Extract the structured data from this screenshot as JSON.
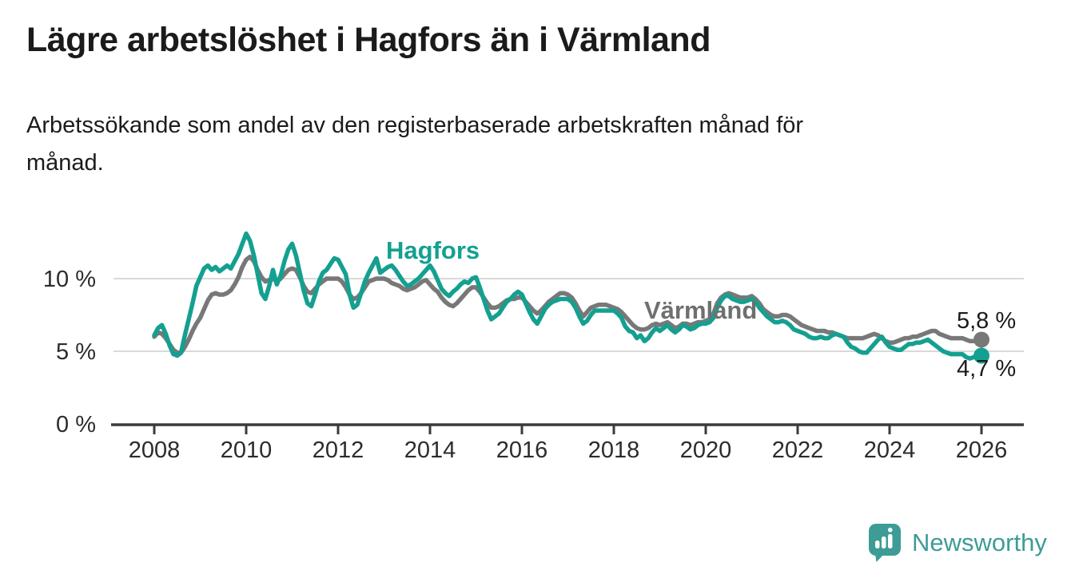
{
  "header": {
    "title": "Lägre arbetslöshet i Hagfors än i Värmland",
    "subtitle": "Arbetssökande som andel av den registerbaserade arbetskraften månad för månad.",
    "subtitle_lines": [
      "Arbetssökande som andel av den registerbaserade arbetskraften månad för",
      "månad."
    ]
  },
  "branding": {
    "name": "Newsworthy",
    "color": "#3d9c96",
    "icon": "newsworthy-speech-bubble-bar-chart"
  },
  "chart_data": {
    "type": "line",
    "frequency": "monthly",
    "x_start": "2008-01",
    "x_end": "2026-01",
    "x_tick_labels": [
      "2008",
      "2010",
      "2012",
      "2014",
      "2016",
      "2018",
      "2020",
      "2022",
      "2024",
      "2026"
    ],
    "y_ticks": [
      0,
      5,
      10
    ],
    "y_tick_labels": [
      "0 %",
      "5 %",
      "10 %"
    ],
    "ylim": [
      0,
      13.5
    ],
    "unit": "%",
    "grid": "horizontal",
    "series": [
      {
        "name": "Hagfors",
        "color": "#14a091",
        "end_label": "4,7 %",
        "end_value": 4.7,
        "values": [
          6.1,
          6.6,
          6.8,
          6.2,
          5.4,
          4.8,
          4.7,
          4.9,
          6.1,
          7.2,
          8.3,
          9.5,
          10.1,
          10.7,
          10.9,
          10.6,
          10.8,
          10.5,
          10.7,
          10.9,
          10.7,
          11.2,
          11.7,
          12.4,
          13.1,
          12.6,
          11.6,
          10.3,
          9.0,
          8.6,
          9.5,
          10.6,
          9.6,
          10.2,
          11.2,
          12.0,
          12.4,
          11.6,
          10.4,
          9.2,
          8.3,
          8.1,
          8.9,
          9.8,
          10.4,
          10.6,
          11.0,
          11.4,
          11.3,
          10.8,
          10.3,
          8.9,
          8.0,
          8.2,
          9.0,
          9.8,
          10.4,
          10.9,
          11.4,
          10.4,
          10.6,
          10.8,
          10.9,
          10.6,
          10.2,
          9.8,
          9.5,
          9.6,
          9.8,
          10.0,
          10.3,
          10.6,
          10.9,
          10.5,
          9.9,
          9.3,
          9.0,
          8.8,
          9.1,
          9.3,
          9.6,
          9.8,
          9.7,
          10.0,
          10.1,
          9.4,
          8.6,
          7.8,
          7.2,
          7.4,
          7.6,
          8.0,
          8.4,
          8.6,
          8.9,
          9.1,
          8.9,
          8.3,
          7.7,
          7.2,
          6.9,
          7.4,
          7.9,
          8.2,
          8.4,
          8.5,
          8.6,
          8.6,
          8.6,
          8.4,
          8.0,
          7.4,
          6.9,
          7.1,
          7.5,
          7.8,
          7.8,
          7.8,
          7.8,
          7.8,
          7.8,
          7.6,
          7.3,
          6.7,
          6.4,
          6.3,
          5.9,
          6.1,
          5.7,
          5.9,
          6.3,
          6.6,
          6.4,
          6.6,
          6.8,
          6.5,
          6.3,
          6.5,
          6.8,
          6.7,
          6.5,
          6.6,
          6.8,
          6.9,
          6.9,
          7.0,
          7.3,
          8.0,
          8.5,
          8.8,
          8.8,
          8.6,
          8.5,
          8.4,
          8.4,
          8.5,
          8.6,
          8.4,
          8.0,
          7.7,
          7.4,
          7.2,
          7.0,
          7.0,
          7.1,
          7.0,
          6.8,
          6.5,
          6.4,
          6.3,
          6.2,
          6.0,
          5.9,
          5.9,
          6.0,
          5.9,
          5.9,
          6.1,
          6.2,
          6.1,
          6.0,
          5.6,
          5.3,
          5.2,
          5.0,
          4.9,
          4.9,
          5.2,
          5.5,
          5.8,
          6.0,
          5.6,
          5.3,
          5.2,
          5.1,
          5.1,
          5.3,
          5.5,
          5.5,
          5.6,
          5.6,
          5.7,
          5.8,
          5.6,
          5.4,
          5.2,
          5.0,
          4.9,
          4.8,
          4.8,
          4.8,
          4.8,
          4.6,
          4.5,
          4.6,
          4.7,
          4.7
        ]
      },
      {
        "name": "Värmland",
        "color": "#787878",
        "end_label": "5,8 %",
        "end_value": 5.8,
        "values": [
          6.0,
          6.3,
          6.2,
          5.9,
          5.5,
          5.1,
          4.9,
          4.9,
          5.3,
          5.8,
          6.4,
          6.9,
          7.3,
          7.9,
          8.5,
          8.9,
          9.0,
          8.9,
          8.9,
          9.0,
          9.2,
          9.6,
          10.1,
          10.8,
          11.3,
          11.5,
          11.2,
          10.6,
          10.1,
          9.8,
          9.9,
          10.0,
          9.8,
          10.0,
          10.3,
          10.6,
          10.7,
          10.6,
          10.1,
          9.5,
          9.1,
          9.0,
          9.3,
          9.6,
          9.8,
          10.0,
          10.0,
          10.0,
          10.0,
          9.8,
          9.4,
          8.9,
          8.6,
          8.7,
          9.0,
          9.4,
          9.8,
          9.9,
          10.0,
          10.0,
          10.0,
          9.9,
          9.7,
          9.6,
          9.5,
          9.3,
          9.2,
          9.3,
          9.4,
          9.6,
          9.8,
          9.9,
          9.6,
          9.3,
          9.1,
          8.7,
          8.4,
          8.2,
          8.1,
          8.3,
          8.6,
          8.9,
          9.2,
          9.4,
          9.4,
          9.1,
          8.7,
          8.3,
          8.0,
          8.0,
          8.1,
          8.3,
          8.5,
          8.6,
          8.6,
          8.7,
          8.7,
          8.4,
          8.1,
          7.8,
          7.6,
          7.8,
          8.1,
          8.4,
          8.6,
          8.8,
          9.0,
          9.0,
          8.9,
          8.7,
          8.3,
          7.8,
          7.4,
          7.7,
          8.0,
          8.1,
          8.2,
          8.2,
          8.2,
          8.1,
          8.0,
          7.9,
          7.7,
          7.4,
          7.1,
          6.8,
          6.6,
          6.5,
          6.5,
          6.6,
          6.8,
          6.9,
          6.8,
          6.9,
          7.0,
          6.8,
          6.6,
          6.7,
          6.9,
          6.9,
          6.8,
          6.9,
          7.0,
          7.0,
          7.1,
          7.2,
          7.6,
          8.3,
          8.7,
          8.9,
          9.0,
          8.9,
          8.8,
          8.7,
          8.7,
          8.7,
          8.8,
          8.6,
          8.3,
          7.9,
          7.7,
          7.5,
          7.4,
          7.4,
          7.5,
          7.5,
          7.4,
          7.2,
          7.0,
          6.8,
          6.7,
          6.6,
          6.5,
          6.4,
          6.4,
          6.4,
          6.3,
          6.3,
          6.2,
          6.1,
          6.0,
          5.9,
          5.9,
          5.9,
          5.9,
          5.9,
          6.0,
          6.1,
          6.2,
          6.1,
          5.9,
          5.7,
          5.6,
          5.6,
          5.7,
          5.8,
          5.9,
          5.9,
          6.0,
          6.0,
          6.1,
          6.2,
          6.3,
          6.4,
          6.4,
          6.2,
          6.1,
          6.0,
          5.9,
          5.9,
          5.9,
          5.9,
          5.8,
          5.7,
          5.7,
          5.8,
          5.8
        ]
      }
    ]
  }
}
